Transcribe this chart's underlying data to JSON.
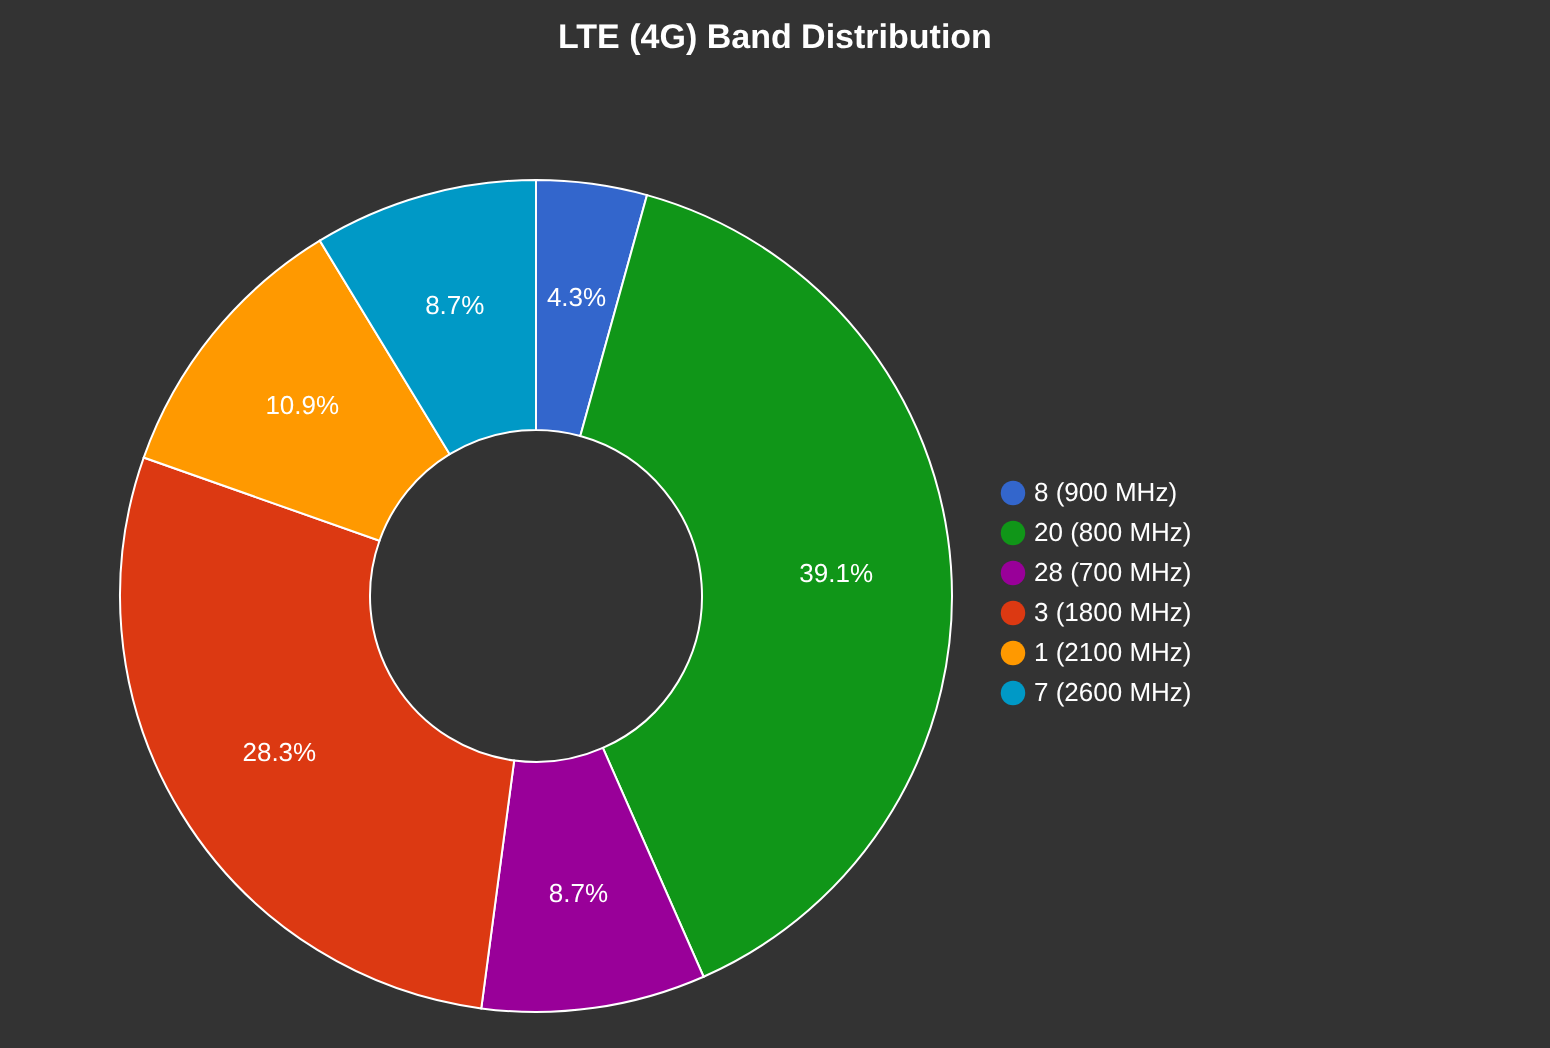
{
  "chart_data": {
    "type": "donut",
    "title": "LTE (4G) Band Distribution",
    "categories": [
      "8 (900 MHz)",
      "20 (800 MHz)",
      "28 (700 MHz)",
      "3 (1800 MHz)",
      "1 (2100 MHz)",
      "7 (2600 MHz)"
    ],
    "values": [
      4.3,
      39.1,
      8.7,
      28.3,
      10.9,
      8.7
    ],
    "colors": [
      "#3366cc",
      "#109618",
      "#990099",
      "#dc3912",
      "#ff9900",
      "#0099c6"
    ],
    "value_labels": [
      "4.3%",
      "39.1%",
      "8.7%",
      "28.3%",
      "10.9%",
      "8.7%"
    ],
    "legend": "right"
  }
}
